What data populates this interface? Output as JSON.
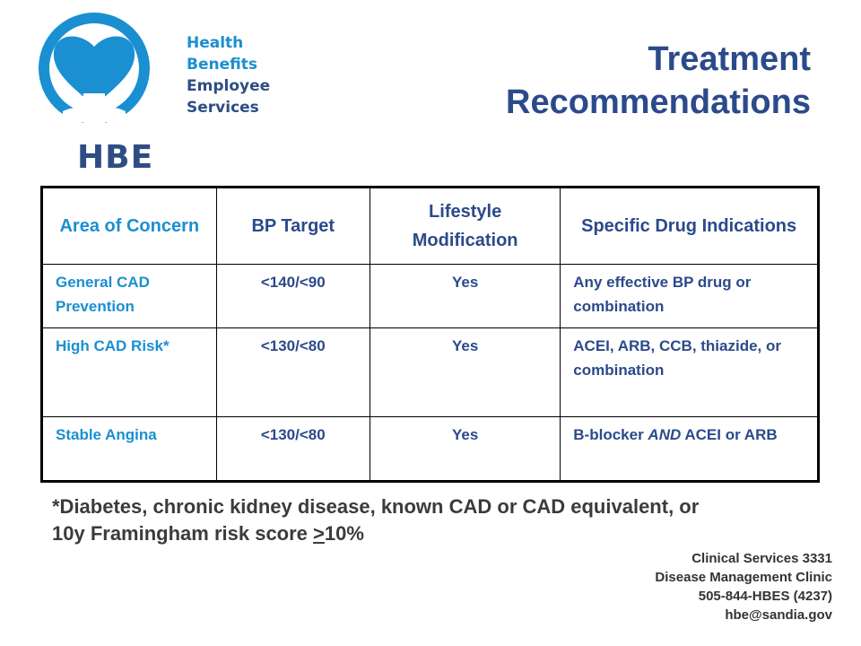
{
  "colors": {
    "accent_blue": "#1a8fd1",
    "navy": "#2e4d84",
    "title_blue": "#2b4a8b",
    "text_dark": "#3b3b3b"
  },
  "logo": {
    "line1": "Health",
    "line2": "Benefits",
    "line3": "Employee Services",
    "abbr": "HBE",
    "icon": "heart-emblem-icon"
  },
  "title": {
    "line1": "Treatment",
    "line2": "Recommendations"
  },
  "table": {
    "headers": [
      "Area of Concern",
      "BP Target",
      "Lifestyle Modification",
      "Specific Drug Indications"
    ],
    "rows": [
      {
        "area": "General CAD Prevention",
        "target": "<140/<90",
        "lifestyle": "Yes",
        "drugs": "Any effective BP drug or combination"
      },
      {
        "area": "High CAD Risk*",
        "target": "<130/<80",
        "lifestyle": "Yes",
        "drugs": "ACEI, ARB, CCB, thiazide, or combination"
      },
      {
        "area": "Stable Angina",
        "target": "<130/<80",
        "lifestyle": "Yes",
        "drugs_pre": "B-blocker ",
        "drugs_em": "AND",
        "drugs_post": " ACEI or ARB"
      }
    ]
  },
  "footnote": {
    "text_pre": "*Diabetes, chronic kidney disease, known CAD or CAD equivalent, or 10y Framingham risk score ",
    "underlined": ">",
    "text_post": "10%"
  },
  "contact": {
    "line1": "Clinical Services 3331",
    "line2": "Disease Management Clinic",
    "line3": "505-844-HBES (4237)",
    "line4": "hbe@sandia.gov"
  }
}
